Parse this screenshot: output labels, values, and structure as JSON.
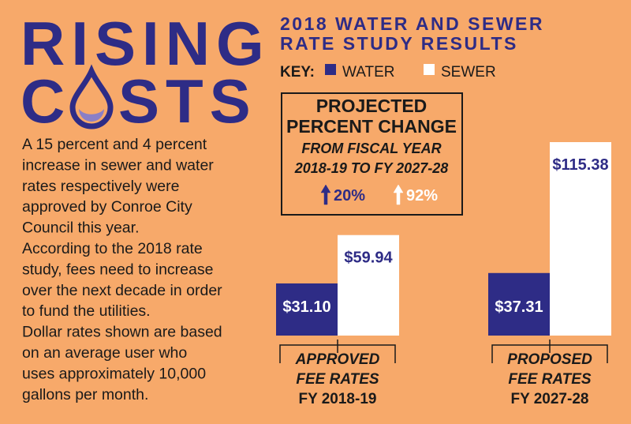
{
  "header": {
    "title_line1": "RISING",
    "title_line2_parts": [
      "C",
      "STS"
    ]
  },
  "body_lines": [
    "A 15 percent and 4 percent",
    "increase in sewer and water",
    "rates respectively were",
    "approved by Conroe City",
    "Council this year.",
    "According to the 2018 rate",
    "study, fees need to increase",
    "over the next decade in order",
    "to fund the utilities.",
    "Dollar rates shown are based",
    "on an average user who",
    "uses approximately 10,000",
    "gallons per month."
  ],
  "chart_data": {
    "type": "bar",
    "title": [
      "2018 WATER AND SEWER",
      "RATE STUDY RESULTS"
    ],
    "legend_label": "KEY:",
    "categories": [
      [
        "APPROVED",
        "FEE RATES",
        "FY 2018-19"
      ],
      [
        "PROPOSED",
        "FEE RATES",
        "FY 2027-28"
      ]
    ],
    "series": [
      {
        "name": "WATER",
        "color": "#2e2c86",
        "values": [
          31.1,
          37.31
        ],
        "value_labels": [
          "$31.10",
          "$37.31"
        ],
        "change": 20,
        "change_label": "20%"
      },
      {
        "name": "SEWER",
        "color": "#ffffff",
        "values": [
          59.94,
          115.38
        ],
        "value_labels": [
          "$59.94",
          "$115.38"
        ],
        "change": 92,
        "change_label": "92%"
      }
    ],
    "annotation": {
      "lines": [
        "PROJECTED",
        "PERCENT CHANGE"
      ],
      "sub_lines": [
        "FROM FISCAL YEAR",
        "2018-19 TO FY 2027-28"
      ]
    }
  }
}
